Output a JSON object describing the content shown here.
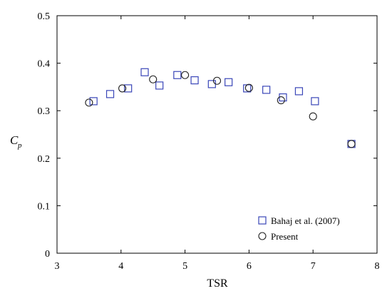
{
  "chart_data": {
    "type": "scatter",
    "xlabel": "TSR",
    "ylabel": "C",
    "ylabel_subscript": "p",
    "xlim": [
      3,
      8
    ],
    "ylim": [
      0,
      0.5
    ],
    "x_ticks": [
      "3",
      "4",
      "5",
      "6",
      "7",
      "8"
    ],
    "y_ticks": [
      "0",
      "0.1",
      "0.2",
      "0.3",
      "0.4",
      "0.5"
    ],
    "grid": false,
    "legend_position": "bottom-right",
    "series": [
      {
        "name": "Bahaj et al. (2007)",
        "marker": "square",
        "color": "#3a46b8",
        "x": [
          3.57,
          3.83,
          4.11,
          4.37,
          4.6,
          4.88,
          5.15,
          5.42,
          5.68,
          5.97,
          6.27,
          6.53,
          6.78,
          7.03,
          7.6
        ],
        "y": [
          0.32,
          0.335,
          0.347,
          0.381,
          0.353,
          0.375,
          0.364,
          0.356,
          0.36,
          0.347,
          0.344,
          0.328,
          0.341,
          0.32,
          0.23
        ]
      },
      {
        "name": "Present",
        "marker": "circle",
        "color": "#222222",
        "x": [
          3.5,
          4.02,
          4.5,
          5.0,
          5.5,
          6.0,
          6.5,
          7.0,
          7.6
        ],
        "y": [
          0.317,
          0.347,
          0.366,
          0.375,
          0.363,
          0.348,
          0.322,
          0.288,
          0.23
        ]
      }
    ]
  }
}
